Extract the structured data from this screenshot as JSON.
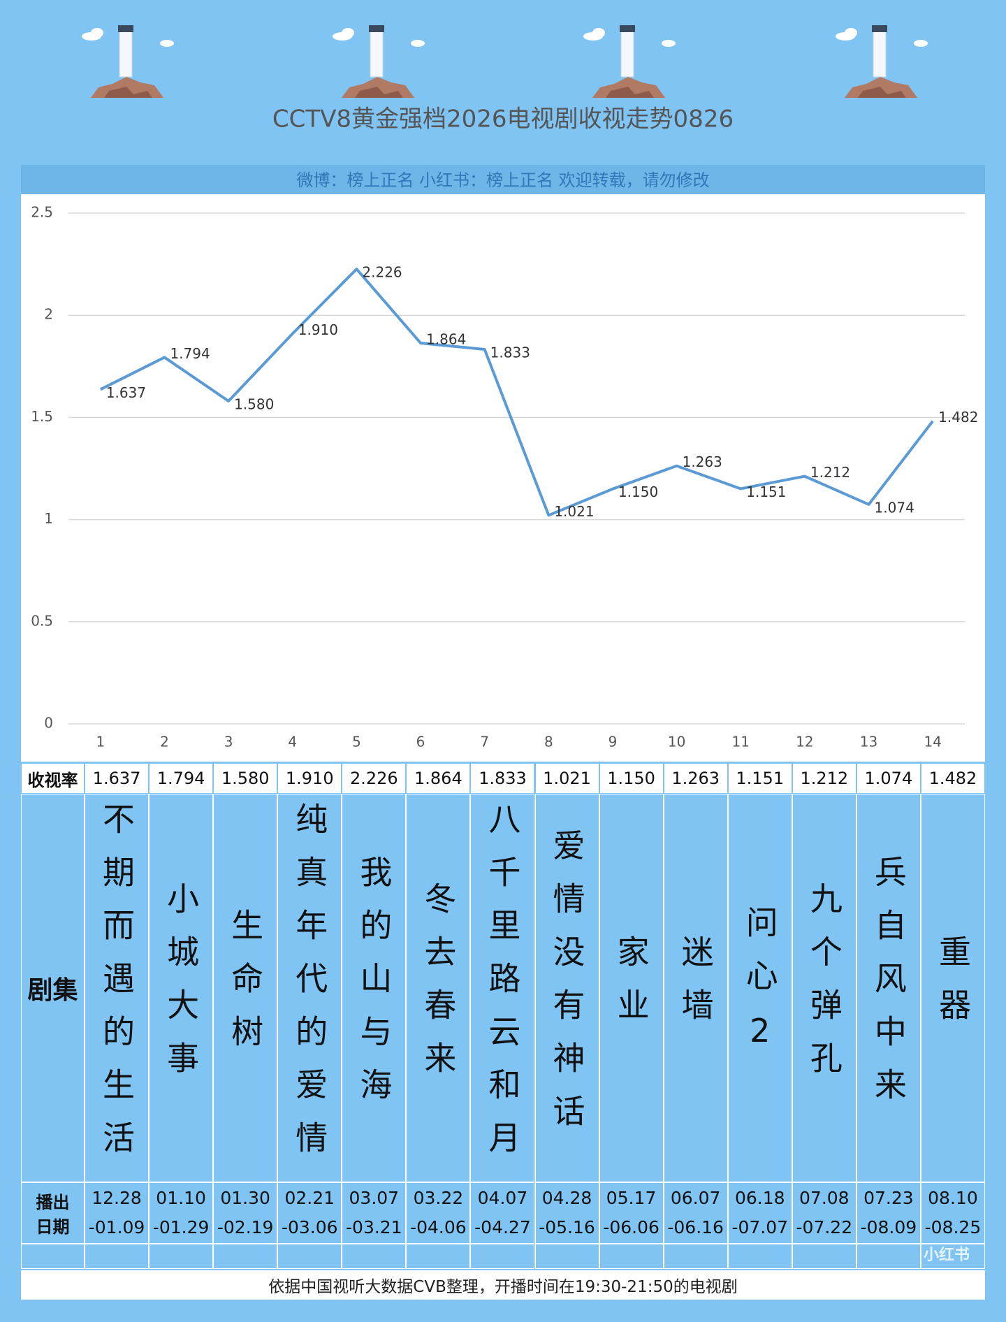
{
  "chart_data": {
    "type": "line",
    "title": "CCTV8黄金强档2026电视剧收视走势0826",
    "subtitle": "微博：榜上正名 小红书：榜上正名 欢迎转载，请勿修改",
    "categories": [
      "1",
      "2",
      "3",
      "4",
      "5",
      "6",
      "7",
      "8",
      "9",
      "10",
      "11",
      "12",
      "13",
      "14"
    ],
    "values": [
      1.637,
      1.794,
      1.58,
      1.91,
      2.226,
      1.864,
      1.833,
      1.021,
      1.15,
      1.263,
      1.151,
      1.212,
      1.074,
      1.482
    ],
    "value_labels": [
      "1.637",
      "1.794",
      "1.580",
      "1.910",
      "2.226",
      "1.864",
      "1.833",
      "1.021",
      "1.150",
      "1.263",
      "1.151",
      "1.212",
      "1.074",
      "1.482"
    ],
    "color": "#5b9bd5",
    "ylim": [
      0,
      2.5
    ],
    "yticks": [
      0,
      0.5,
      1,
      1.5,
      2,
      2.5
    ],
    "grid": true
  },
  "table": {
    "row_labels": [
      "收视率",
      "剧集",
      "播出",
      "日期"
    ],
    "names": [
      "不期而遇的生活",
      "小城大事",
      "生命树",
      "纯真年代的爱情",
      "我的山与海",
      "冬去春来",
      "八千里路云和月",
      "爱情没有神话",
      "家业",
      "迷墙",
      "问心2",
      "九个弹孔",
      "兵自风中来",
      "重器"
    ],
    "dates": [
      [
        "12.28",
        "-01.09"
      ],
      [
        "01.10",
        "-01.29"
      ],
      [
        "01.30",
        "-02.19"
      ],
      [
        "02.21",
        "-03.06"
      ],
      [
        "03.07",
        "-03.21"
      ],
      [
        "03.22",
        "-04.06"
      ],
      [
        "04.07",
        "-04.27"
      ],
      [
        "04.28",
        "-05.16"
      ],
      [
        "05.17",
        "-06.06"
      ],
      [
        "06.07",
        "-06.16"
      ],
      [
        "06.18",
        "-07.07"
      ],
      [
        "07.08",
        "-07.22"
      ],
      [
        "07.23",
        "-08.09"
      ],
      [
        "08.10",
        "-08.25"
      ]
    ]
  },
  "footer": "依据中国视听大数据CVB整理，开播时间在19:30-21:50的电视剧",
  "watermark": "小红书"
}
